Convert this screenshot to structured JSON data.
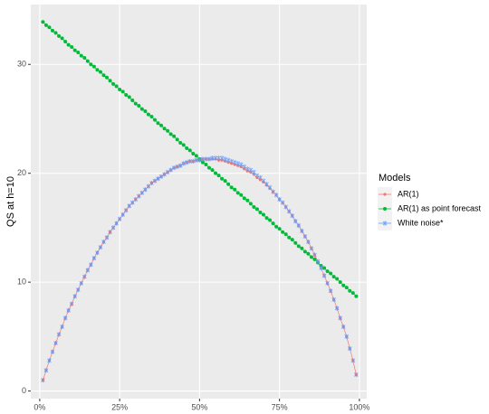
{
  "chart_data": {
    "type": "line",
    "ylabel": "QS at h=10",
    "legend_title": "Models",
    "legend": "right",
    "grid": true,
    "x": [
      1,
      2,
      3,
      4,
      5,
      6,
      7,
      8,
      9,
      10,
      11,
      12,
      13,
      14,
      15,
      16,
      17,
      18,
      19,
      20,
      21,
      22,
      23,
      24,
      25,
      26,
      27,
      28,
      29,
      30,
      31,
      32,
      33,
      34,
      35,
      36,
      37,
      38,
      39,
      40,
      41,
      42,
      43,
      44,
      45,
      46,
      47,
      48,
      49,
      50,
      51,
      52,
      53,
      54,
      55,
      56,
      57,
      58,
      59,
      60,
      61,
      62,
      63,
      64,
      65,
      66,
      67,
      68,
      69,
      70,
      71,
      72,
      73,
      74,
      75,
      76,
      77,
      78,
      79,
      80,
      81,
      82,
      83,
      84,
      85,
      86,
      87,
      88,
      89,
      90,
      91,
      92,
      93,
      94,
      95,
      96,
      97,
      98,
      99
    ],
    "xlim": [
      -2.8,
      102.3
    ],
    "xticks": [
      {
        "value": 0,
        "label": "0%"
      },
      {
        "value": 25,
        "label": "25%"
      },
      {
        "value": 50,
        "label": "50%"
      },
      {
        "value": 75,
        "label": "75%"
      },
      {
        "value": 100,
        "label": "100%"
      }
    ],
    "ylim": [
      -0.7,
      35.5
    ],
    "yticks": [
      0,
      10,
      20,
      30
    ],
    "series": [
      {
        "name": "AR(1)",
        "color": "#F8766D",
        "marker": "circle",
        "values": [
          1.0,
          1.9,
          2.8,
          3.6,
          4.4,
          5.2,
          5.9,
          6.7,
          7.4,
          8.0,
          8.7,
          9.3,
          9.9,
          10.5,
          11.1,
          11.6,
          12.2,
          12.7,
          13.2,
          13.7,
          14.1,
          14.6,
          15.0,
          15.4,
          15.8,
          16.2,
          16.6,
          17.0,
          17.3,
          17.6,
          17.9,
          18.2,
          18.5,
          18.8,
          19.1,
          19.3,
          19.5,
          19.7,
          19.9,
          20.1,
          20.3,
          20.5,
          20.6,
          20.7,
          20.9,
          21.0,
          21.1,
          21.1,
          21.2,
          21.2,
          21.3,
          21.3,
          21.3,
          21.3,
          21.3,
          21.2,
          21.2,
          21.1,
          21.0,
          20.9,
          20.8,
          20.7,
          20.6,
          20.4,
          20.2,
          20.1,
          19.9,
          19.6,
          19.4,
          19.2,
          18.9,
          18.6,
          18.3,
          18.0,
          17.6,
          17.3,
          16.9,
          16.5,
          16.1,
          15.6,
          15.2,
          14.7,
          14.2,
          13.7,
          13.1,
          12.5,
          11.9,
          11.3,
          10.6,
          9.9,
          9.2,
          8.4,
          7.6,
          6.7,
          5.9,
          5.0,
          3.9,
          2.8,
          1.5
        ]
      },
      {
        "name": "AR(1) as point forecast",
        "color": "#00BA38",
        "marker": "dot",
        "values": [
          33.9,
          33.6,
          33.4,
          33.1,
          32.9,
          32.6,
          32.4,
          32.1,
          31.8,
          31.6,
          31.3,
          31.1,
          30.8,
          30.6,
          30.3,
          30.0,
          29.8,
          29.5,
          29.3,
          29.0,
          28.8,
          28.5,
          28.2,
          28.0,
          27.7,
          27.5,
          27.2,
          27.0,
          26.7,
          26.4,
          26.2,
          25.9,
          25.7,
          25.4,
          25.2,
          24.9,
          24.6,
          24.4,
          24.1,
          23.9,
          23.6,
          23.4,
          23.1,
          22.8,
          22.6,
          22.3,
          22.1,
          21.8,
          21.6,
          21.3,
          21.0,
          20.8,
          20.5,
          20.3,
          20.0,
          19.8,
          19.5,
          19.3,
          19.0,
          18.7,
          18.5,
          18.2,
          18.0,
          17.7,
          17.5,
          17.2,
          16.9,
          16.7,
          16.4,
          16.2,
          15.9,
          15.7,
          15.4,
          15.1,
          14.9,
          14.6,
          14.4,
          14.1,
          13.9,
          13.6,
          13.3,
          13.1,
          12.8,
          12.6,
          12.3,
          12.1,
          11.8,
          11.5,
          11.3,
          11.0,
          10.8,
          10.5,
          10.3,
          10.0,
          9.7,
          9.5,
          9.2,
          9.0,
          8.7
        ]
      },
      {
        "name": "White noise*",
        "color": "#619CFF",
        "marker": "cross",
        "values": [
          1.0,
          1.9,
          2.8,
          3.6,
          4.4,
          5.2,
          5.9,
          6.7,
          7.4,
          8.0,
          8.7,
          9.3,
          9.9,
          10.5,
          11.1,
          11.6,
          12.2,
          12.7,
          13.2,
          13.7,
          14.1,
          14.6,
          15.0,
          15.4,
          15.8,
          16.2,
          16.6,
          17.0,
          17.3,
          17.6,
          17.9,
          18.2,
          18.5,
          18.8,
          19.1,
          19.3,
          19.5,
          19.7,
          19.9,
          20.1,
          20.3,
          20.5,
          20.6,
          20.7,
          20.9,
          21.0,
          21.1,
          21.1,
          21.2,
          21.2,
          21.3,
          21.3,
          21.3,
          21.4,
          21.4,
          21.4,
          21.4,
          21.3,
          21.2,
          21.1,
          21.0,
          20.9,
          20.8,
          20.6,
          20.4,
          20.3,
          20.1,
          19.8,
          19.6,
          19.3,
          19.0,
          18.7,
          18.3,
          18.0,
          17.6,
          17.3,
          16.9,
          16.5,
          16.1,
          15.6,
          15.2,
          14.7,
          14.2,
          13.7,
          13.1,
          12.5,
          11.9,
          11.3,
          10.6,
          9.9,
          9.2,
          8.4,
          7.6,
          6.7,
          5.9,
          5.0,
          3.9,
          2.8,
          1.5
        ]
      }
    ]
  }
}
